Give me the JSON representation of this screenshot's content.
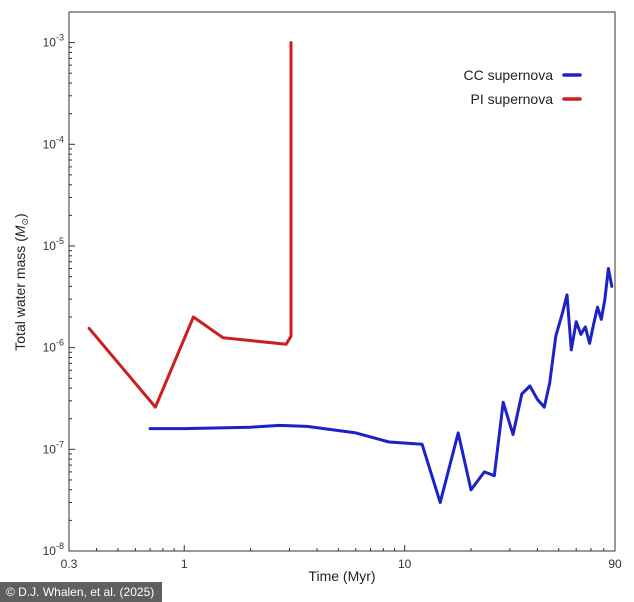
{
  "chart_data": {
    "type": "line",
    "title": "",
    "xlabel": "Time (Myr)",
    "ylabel_main": "Total water mass (",
    "ylabel_unit": "M",
    "ylabel_sub": "⊙",
    "ylabel_end": ")",
    "xscale": "log",
    "yscale": "log",
    "xlim": [
      0.3,
      90
    ],
    "ylim": [
      1e-08,
      0.002
    ],
    "x_ticks": [
      {
        "value": 0.3,
        "label": "0.3"
      },
      {
        "value": 1,
        "label": "1"
      },
      {
        "value": 10,
        "label": "10"
      },
      {
        "value": 90,
        "label": "90"
      }
    ],
    "y_ticks": [
      {
        "value": 1e-08,
        "base": "10",
        "exp": "-8"
      },
      {
        "value": 1e-07,
        "base": "10",
        "exp": "-7"
      },
      {
        "value": 1e-06,
        "base": "10",
        "exp": "-6"
      },
      {
        "value": 1e-05,
        "base": "10",
        "exp": "-5"
      },
      {
        "value": 0.0001,
        "base": "10",
        "exp": "-4"
      },
      {
        "value": 0.001,
        "base": "10",
        "exp": "-3"
      }
    ],
    "grid": false,
    "legend_position": "top-right",
    "series": [
      {
        "name": "CC supernova",
        "color": "#1a22c8",
        "x": [
          0.7,
          1.0,
          2.0,
          2.7,
          3.6,
          6.0,
          8.5,
          12.0,
          14.5,
          17.5,
          20.0,
          23.0,
          25.5,
          28.0,
          31.0,
          34.0,
          37.0,
          40.0,
          43.0,
          45.5,
          48.5,
          52.0,
          54.5,
          57.0,
          60.0,
          63.0,
          66.0,
          69.0,
          72.0,
          75.0,
          78.0,
          81.0,
          84.0,
          87.0
        ],
        "y": [
          1.6e-07,
          1.6e-07,
          1.65e-07,
          1.72e-07,
          1.68e-07,
          1.45e-07,
          1.18e-07,
          1.12e-07,
          3e-08,
          1.45e-07,
          4e-08,
          6e-08,
          5.5e-08,
          2.9e-07,
          1.4e-07,
          3.5e-07,
          4.2e-07,
          3.1e-07,
          2.6e-07,
          4.5e-07,
          1.3e-06,
          2.2e-06,
          3.3e-06,
          9.5e-07,
          1.8e-06,
          1.35e-06,
          1.6e-06,
          1.1e-06,
          1.7e-06,
          2.5e-06,
          1.9e-06,
          3e-06,
          6e-06,
          4e-06
        ]
      },
      {
        "name": "PI supernova",
        "color": "#cc1e1e",
        "x": [
          0.37,
          0.74,
          1.1,
          1.5,
          2.9,
          3.05,
          3.05
        ],
        "y": [
          1.55e-06,
          2.6e-07,
          2e-06,
          1.25e-06,
          1.08e-06,
          1.3e-06,
          0.001
        ]
      }
    ]
  },
  "credit": "© D.J. Whalen, et al. (2025)"
}
